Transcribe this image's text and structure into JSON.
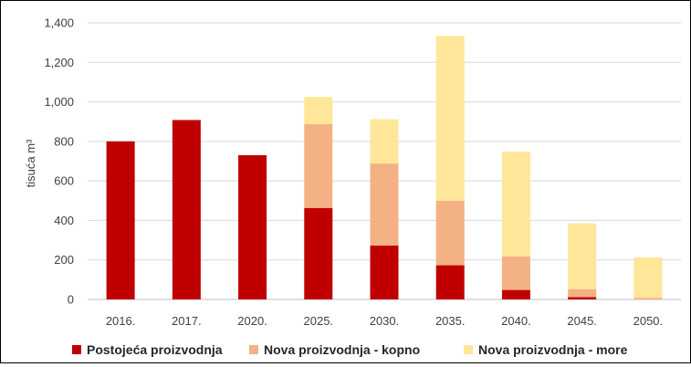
{
  "chart_data": {
    "type": "bar",
    "stacked": true,
    "categories": [
      "2016.",
      "2017.",
      "2020.",
      "2025.",
      "2030.",
      "2035.",
      "2040.",
      "2045.",
      "2050."
    ],
    "series": [
      {
        "name": "Postojeća proizvodnja",
        "color": "#c00000",
        "values": [
          800,
          908,
          730,
          463,
          273,
          173,
          48,
          12,
          0
        ]
      },
      {
        "name": "Nova proizvodnja - kopno",
        "color": "#f4b183",
        "values": [
          0,
          0,
          0,
          424,
          415,
          327,
          170,
          40,
          8
        ]
      },
      {
        "name": "Nova proizvodnja - more",
        "color": "#ffe699",
        "values": [
          0,
          0,
          0,
          138,
          224,
          834,
          530,
          333,
          205
        ]
      }
    ],
    "ylabel": "tisuća m³",
    "ylim": [
      0,
      1400
    ],
    "yticks": [
      0,
      200,
      400,
      600,
      800,
      1000,
      1200,
      1400
    ],
    "ytick_labels": [
      "0",
      "200",
      "400",
      "600",
      "800",
      "1,000",
      "1,200",
      "1,400"
    ],
    "grid": true,
    "legend_position": "bottom"
  }
}
